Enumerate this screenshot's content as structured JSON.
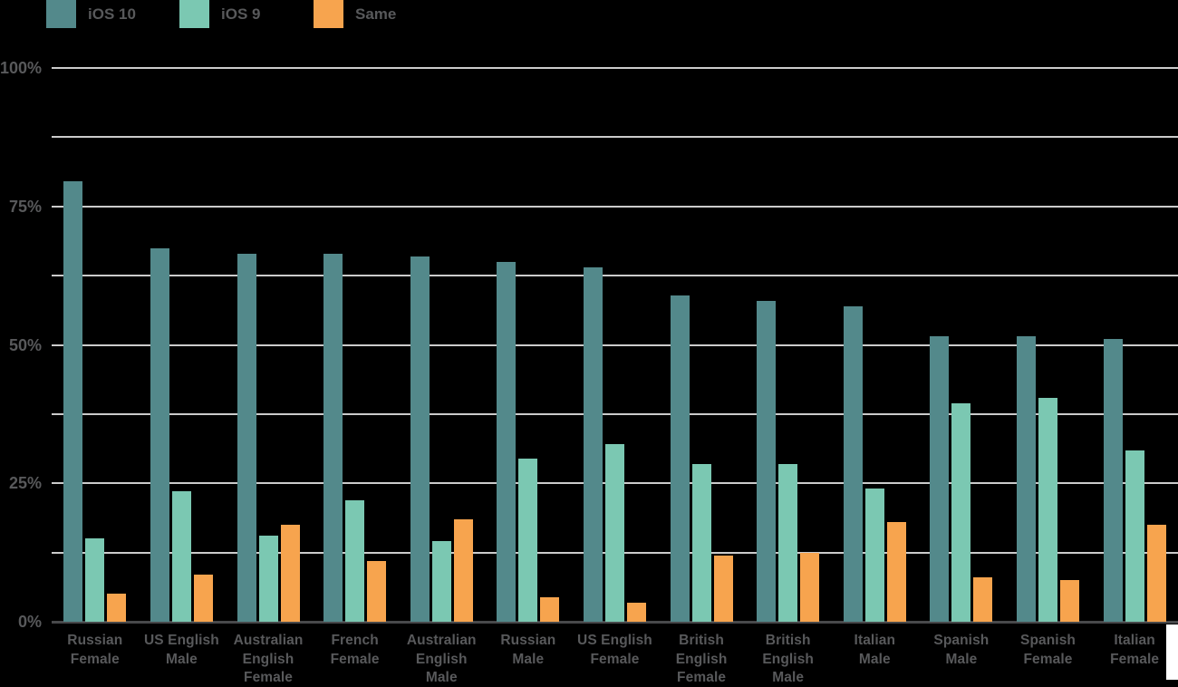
{
  "colors": {
    "background": "#000000",
    "gridline": "#CBCBCB",
    "axis_baseline": "#48494B",
    "text": "#58595B",
    "ios10": "#53898B",
    "ios9": "#7BC8B2",
    "same": "#F7A44E",
    "corner_artifact": "#FFFFFF"
  },
  "legend": {
    "items": [
      {
        "label": "iOS 10",
        "color": "#53898B"
      },
      {
        "label": "iOS 9",
        "color": "#7BC8B2"
      },
      {
        "label": "Same",
        "color": "#F7A44E"
      }
    ]
  },
  "chart_data": {
    "type": "bar",
    "title": "",
    "xlabel": "",
    "ylabel": "",
    "categories": [
      "Russian Female",
      "US English Male",
      "Australian English Female",
      "French Female",
      "Australian English Male",
      "Russian Male",
      "US English Female",
      "British English Female",
      "British English Male",
      "Italian Male",
      "Spanish Male",
      "Spanish Female",
      "Italian Female"
    ],
    "category_label_lines": [
      [
        "Russian",
        "Female"
      ],
      [
        "US English",
        "Male"
      ],
      [
        "Australian",
        "English",
        "Female"
      ],
      [
        "French",
        "Female"
      ],
      [
        "Australian",
        "English",
        "Male"
      ],
      [
        "Russian",
        "Male"
      ],
      [
        "US English",
        "Female"
      ],
      [
        "British",
        "English",
        "Female"
      ],
      [
        "British",
        "English",
        "Male"
      ],
      [
        "Italian",
        "Male"
      ],
      [
        "Spanish",
        "Male"
      ],
      [
        "Spanish",
        "Female"
      ],
      [
        "Italian",
        "Female"
      ]
    ],
    "series": [
      {
        "name": "iOS 10",
        "color": "#53898B",
        "values": [
          79.5,
          67.5,
          66.5,
          66.5,
          66,
          65,
          64,
          59,
          58,
          57,
          51.5,
          51.5,
          51
        ]
      },
      {
        "name": "iOS 9",
        "color": "#7BC8B2",
        "values": [
          15,
          23.5,
          15.5,
          22,
          14.5,
          29.5,
          32,
          28.5,
          28.5,
          24,
          39.5,
          40.5,
          31
        ]
      },
      {
        "name": "Same",
        "color": "#F7A44E",
        "values": [
          5,
          8.5,
          17.5,
          11,
          18.5,
          4.5,
          3.5,
          12,
          12.5,
          18,
          8,
          7.5,
          17.5
        ]
      }
    ],
    "y_axis": {
      "min": 0,
      "max": 100,
      "unit": "%",
      "labeled_ticks": [
        0,
        25,
        50,
        75,
        100
      ],
      "tick_labels": [
        "0%",
        "25%",
        "50%",
        "75%",
        "100%"
      ],
      "gridline_step": 12.5
    },
    "grid": true,
    "legend_position": "top-left"
  }
}
